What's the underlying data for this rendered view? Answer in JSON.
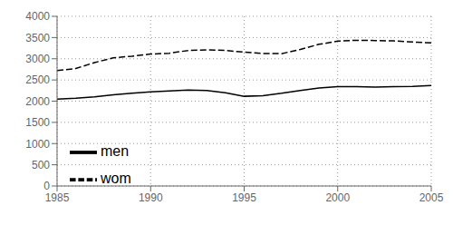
{
  "chart_data": {
    "type": "line",
    "x": [
      1985,
      1986,
      1987,
      1988,
      1989,
      1990,
      1991,
      1992,
      1993,
      1994,
      1995,
      1996,
      1997,
      1998,
      1999,
      2000,
      2001,
      2002,
      2003,
      2004,
      2005
    ],
    "series": [
      {
        "name": "men",
        "color": "#000000",
        "line_style": "solid",
        "values": [
          2050,
          2070,
          2100,
          2150,
          2185,
          2220,
          2240,
          2260,
          2250,
          2200,
          2115,
          2130,
          2185,
          2250,
          2310,
          2340,
          2340,
          2330,
          2340,
          2350,
          2370
        ]
      },
      {
        "name": "wom",
        "color": "#000000",
        "line_style": "dashed",
        "values": [
          2720,
          2770,
          2910,
          3020,
          3060,
          3110,
          3130,
          3195,
          3210,
          3195,
          3155,
          3125,
          3120,
          3220,
          3340,
          3415,
          3435,
          3430,
          3420,
          3395,
          3375
        ]
      }
    ],
    "xlim": [
      1985,
      2005
    ],
    "xticks": [
      1985,
      1990,
      1995,
      2000,
      2005
    ],
    "ylim": [
      0,
      4000
    ],
    "yticks": [
      0,
      500,
      1000,
      1500,
      2000,
      2500,
      3000,
      3500,
      4000
    ],
    "grid": true,
    "legend": "lower left"
  }
}
